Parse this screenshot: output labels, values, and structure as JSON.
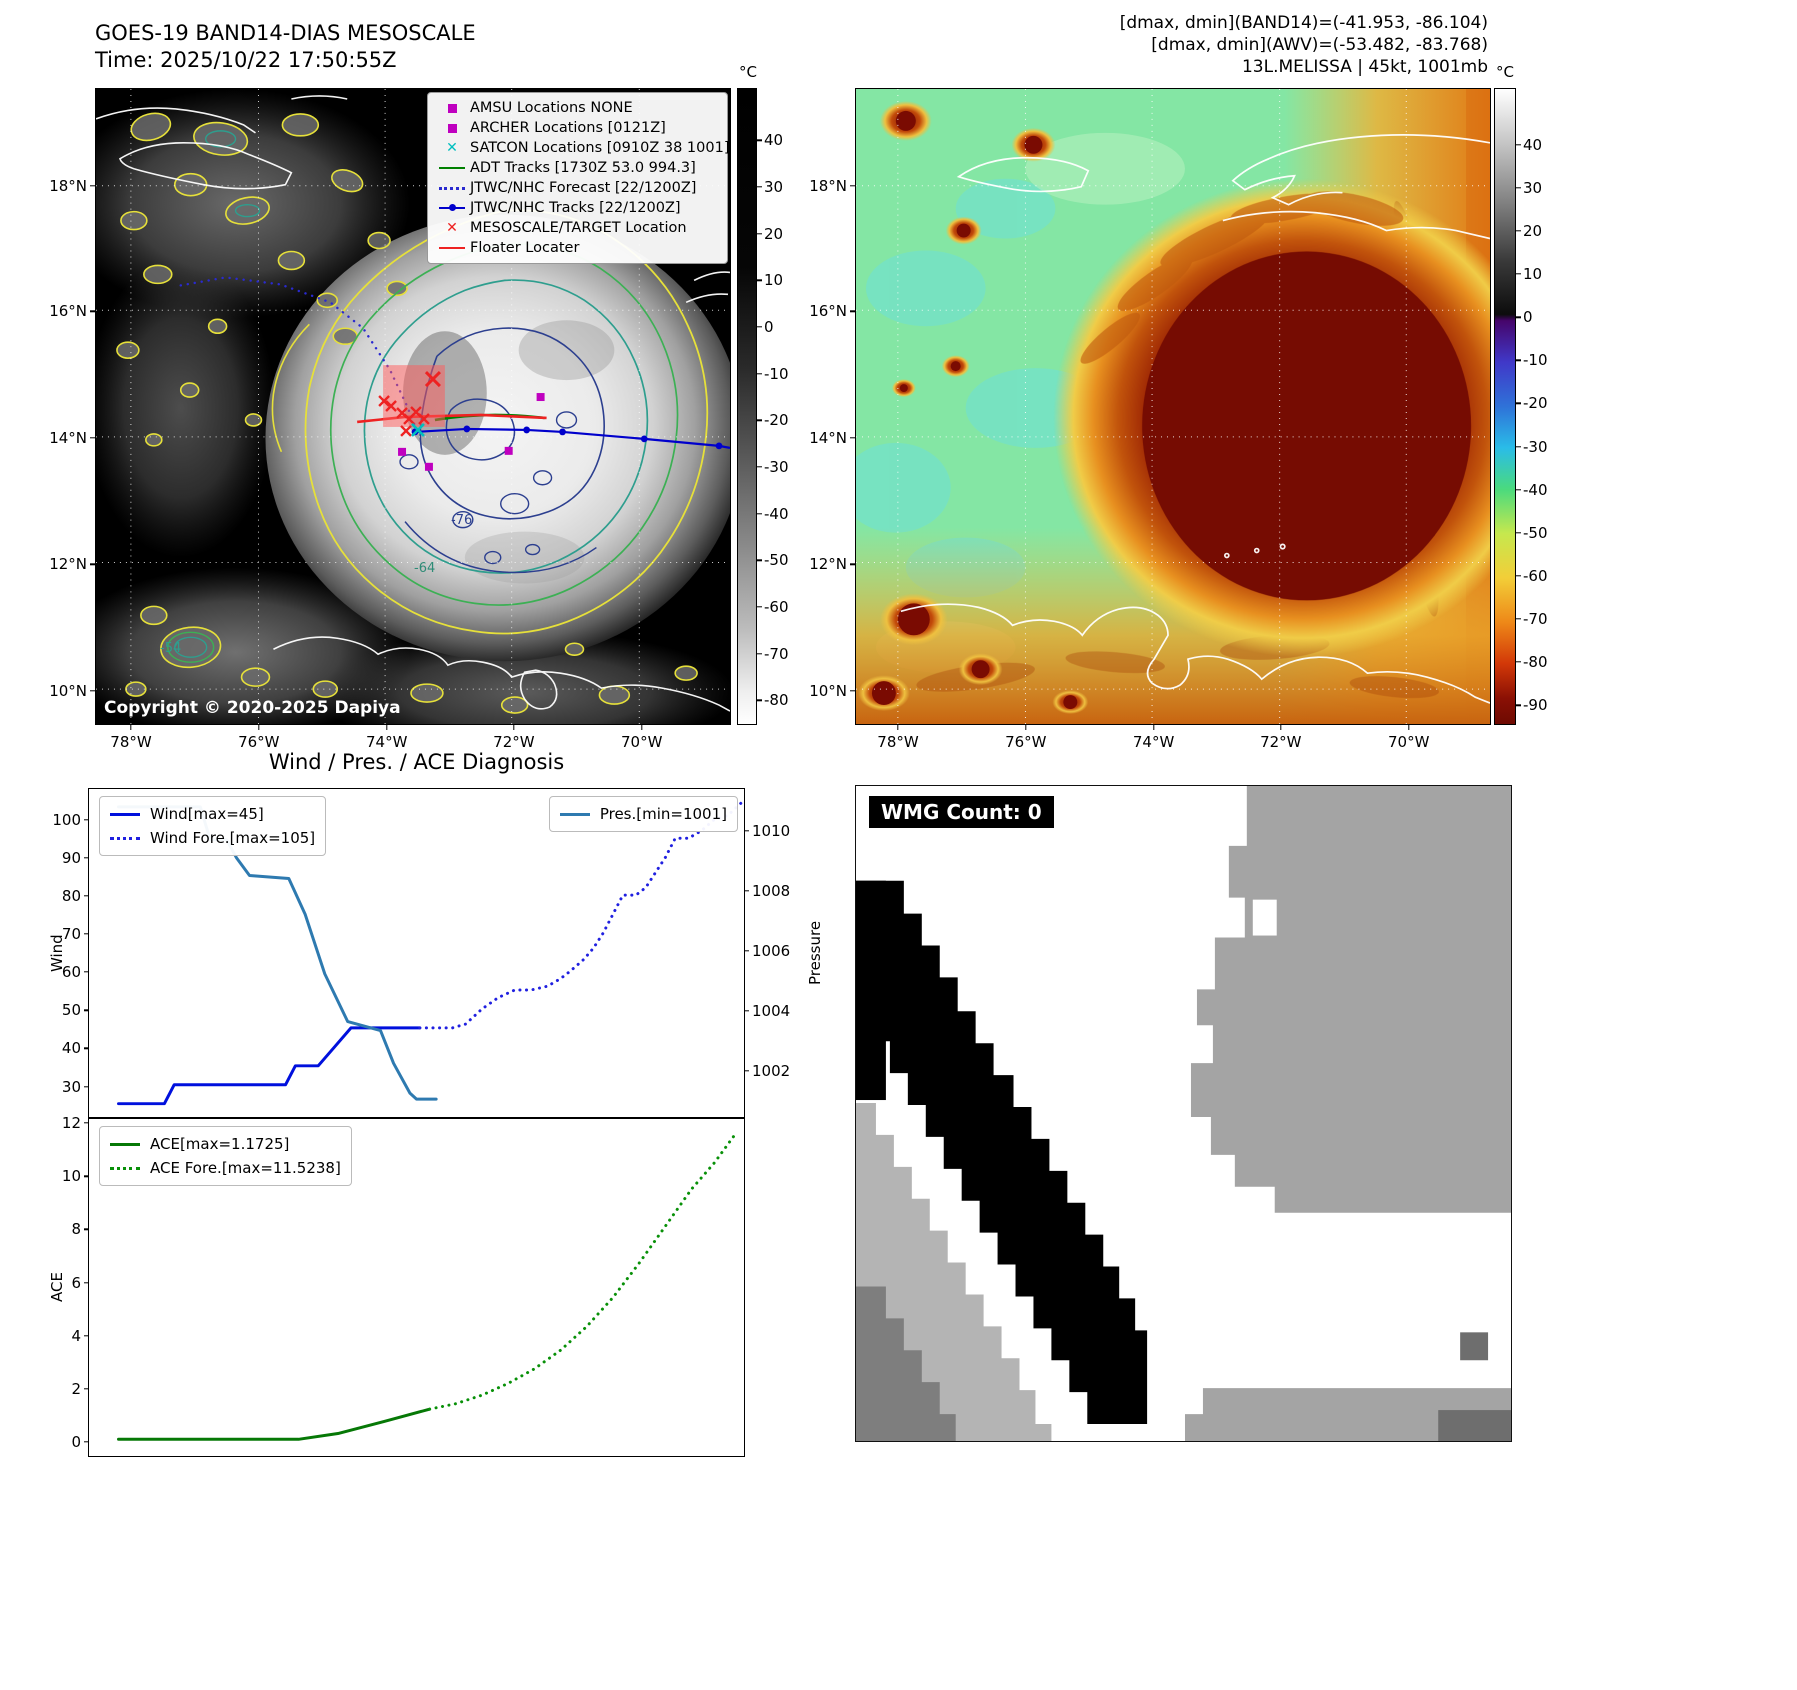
{
  "ir_panel": {
    "title": "GOES-19 BAND14-DIAS MESOSCALE",
    "time": "Time: 2025/10/22 17:50:55Z",
    "copyright": "Copyright © 2020-2025 Dapiya",
    "legend": [
      {
        "label": "AMSU Locations NONE",
        "marker": "magenta-square"
      },
      {
        "label": "ARCHER Locations [0121Z]",
        "marker": "magenta-square"
      },
      {
        "label": "SATCON Locations [0910Z 38 1001]",
        "marker": "cyan-x"
      },
      {
        "label": "ADT Tracks [1730Z 53.0 994.3]",
        "marker": "green-line"
      },
      {
        "label": "JTWC/NHC Forecast [22/1200Z]",
        "marker": "blue-dotted"
      },
      {
        "label": "JTWC/NHC Tracks [22/1200Z]",
        "marker": "blue-line-dot"
      },
      {
        "label": "MESOSCALE/TARGET Location",
        "marker": "red-x"
      },
      {
        "label": "Floater Locater",
        "marker": "red-line"
      }
    ],
    "lat_ticks": [
      "18°N",
      "16°N",
      "14°N",
      "12°N",
      "10°N"
    ],
    "lon_ticks": [
      "78°W",
      "76°W",
      "74°W",
      "72°W",
      "70°W"
    ],
    "contour_labels": [
      "-54",
      "-64",
      "-76"
    ],
    "colorbar": {
      "unit": "°C",
      "ticks": [
        40,
        30,
        20,
        10,
        0,
        -10,
        -20,
        -30,
        -40,
        -50,
        -60,
        -70,
        -80
      ]
    }
  },
  "awv_panel": {
    "header": [
      "[dmax, dmin](BAND14)=(-41.953, -86.104)",
      "[dmax, dmin](AWV)=(-53.482, -83.768)",
      "13L.MELISSA | 45kt, 1001mb"
    ],
    "lat_ticks": [
      "18°N",
      "16°N",
      "14°N",
      "12°N",
      "10°N"
    ],
    "lon_ticks": [
      "78°W",
      "76°W",
      "74°W",
      "72°W",
      "70°W"
    ],
    "colorbar": {
      "unit": "°C",
      "ticks": [
        40,
        30,
        20,
        10,
        0,
        -10,
        -20,
        -30,
        -40,
        -50,
        -60,
        -70,
        -80,
        -90
      ]
    }
  },
  "diagnosis": {
    "title": "Wind / Pres. / ACE Diagnosis"
  },
  "wmg": {
    "count_label": "WMG Count: 0"
  },
  "chart_data": [
    {
      "type": "line",
      "title": "Wind / Pres. / ACE Diagnosis",
      "ylabel_left": "Wind",
      "ylabel_right": "Pressure",
      "ylim_left": [
        21.5,
        108
      ],
      "ylim_right": [
        1000.4,
        1011.4
      ],
      "yticks_left": [
        100,
        90,
        80,
        70,
        60,
        50,
        40,
        30
      ],
      "yticks_right": [
        1010,
        1008,
        1006,
        1004,
        1002
      ],
      "x_axis": "normalized time 0-1, no tick labels shown",
      "series": [
        {
          "name": "Wind[max=45]",
          "legend": "tl",
          "axis": "left",
          "style": "solid",
          "color": "#0010dd",
          "data_name": "wind-line",
          "points": [
            [
              0.045,
              25
            ],
            [
              0.115,
              25
            ],
            [
              0.13,
              30
            ],
            [
              0.285,
              30
            ],
            [
              0.3,
              30
            ],
            [
              0.315,
              35
            ],
            [
              0.35,
              35
            ],
            [
              0.375,
              40
            ],
            [
              0.4,
              45
            ],
            [
              0.505,
              45
            ]
          ]
        },
        {
          "name": "Wind Fore.[max=105]",
          "legend": "tl",
          "axis": "left",
          "style": "dotted",
          "color": "#2020e0",
          "data_name": "wind-forecast-line",
          "points": [
            [
              0.505,
              45
            ],
            [
              0.555,
              45
            ],
            [
              0.575,
              46
            ],
            [
              0.6,
              50
            ],
            [
              0.625,
              53
            ],
            [
              0.65,
              55
            ],
            [
              0.675,
              55
            ],
            [
              0.7,
              56
            ],
            [
              0.72,
              58
            ],
            [
              0.735,
              60
            ],
            [
              0.755,
              63
            ],
            [
              0.77,
              66
            ],
            [
              0.785,
              70
            ],
            [
              0.8,
              75
            ],
            [
              0.815,
              80
            ],
            [
              0.835,
              80
            ],
            [
              0.85,
              82
            ],
            [
              0.865,
              86
            ],
            [
              0.88,
              90
            ],
            [
              0.895,
              95
            ],
            [
              0.915,
              95
            ],
            [
              0.935,
              97
            ],
            [
              0.955,
              100
            ],
            [
              0.975,
              101
            ],
            [
              1,
              105
            ]
          ]
        },
        {
          "name": "Pres.[min=1001]",
          "legend": "tr",
          "axis": "right",
          "style": "solid",
          "color": "#2e7ab0",
          "data_name": "pressure-line",
          "points": [
            [
              0.045,
              1010.8
            ],
            [
              0.17,
              1010.8
            ],
            [
              0.185,
              1009.7
            ],
            [
              0.21,
              1009.7
            ],
            [
              0.225,
              1009.1
            ],
            [
              0.245,
              1008.5
            ],
            [
              0.305,
              1008.4
            ],
            [
              0.33,
              1007.2
            ],
            [
              0.36,
              1005.2
            ],
            [
              0.395,
              1003.6
            ],
            [
              0.445,
              1003.3
            ],
            [
              0.465,
              1002.2
            ],
            [
              0.49,
              1001.2
            ],
            [
              0.5,
              1001
            ],
            [
              0.53,
              1001
            ]
          ]
        }
      ]
    },
    {
      "type": "line",
      "ylabel_left": "ACE",
      "ylim_left": [
        -0.6,
        12.15
      ],
      "yticks_left": [
        12,
        10,
        8,
        6,
        4,
        2,
        0
      ],
      "series": [
        {
          "name": "ACE[max=1.1725]",
          "legend": "tl",
          "axis": "left",
          "style": "solid",
          "color": "#067806",
          "data_name": "ace-line",
          "points": [
            [
              0.045,
              0.03
            ],
            [
              0.32,
              0.03
            ],
            [
              0.38,
              0.25
            ],
            [
              0.45,
              0.7
            ],
            [
              0.52,
              1.17
            ]
          ]
        },
        {
          "name": "ACE Fore.[max=11.5238]",
          "legend": "tl",
          "axis": "left",
          "style": "dotted",
          "color": "#089008",
          "data_name": "ace-forecast-line",
          "points": [
            [
              0.52,
              1.17
            ],
            [
              0.56,
              1.38
            ],
            [
              0.6,
              1.7
            ],
            [
              0.64,
              2.15
            ],
            [
              0.68,
              2.7
            ],
            [
              0.72,
              3.4
            ],
            [
              0.76,
              4.3
            ],
            [
              0.8,
              5.4
            ],
            [
              0.84,
              6.7
            ],
            [
              0.88,
              8.1
            ],
            [
              0.92,
              9.5
            ],
            [
              0.955,
              10.5
            ],
            [
              0.985,
              11.52
            ]
          ]
        }
      ]
    }
  ],
  "colors": {
    "track_blue": "#0000cc",
    "forecast_blue": "#2a2ad0",
    "adt_green": "#008000",
    "target_red": "#ee2222",
    "archer_magenta": "#bf00bf",
    "satcon_cyan": "#00bfbf",
    "wind_blue": "#0010dd",
    "pressure_blue": "#2e7ab0",
    "ace_green": "#067806",
    "mask_black": "#000000",
    "mask_gray": "#a4a4a4",
    "mask_light_gray": "#b4b4b4",
    "mask_dark_gray": "#7e7e7e"
  }
}
